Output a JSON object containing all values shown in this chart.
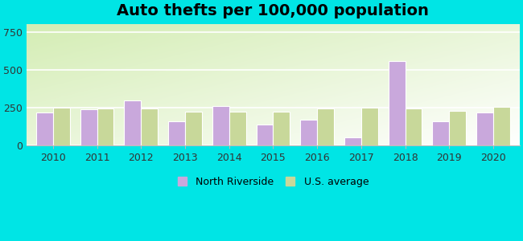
{
  "title": "Auto thefts per 100,000 population",
  "years": [
    2010,
    2011,
    2012,
    2013,
    2014,
    2015,
    2016,
    2017,
    2018,
    2019,
    2020
  ],
  "north_riverside": [
    220,
    240,
    300,
    160,
    260,
    140,
    170,
    55,
    560,
    160,
    220
  ],
  "us_average": [
    250,
    245,
    245,
    225,
    225,
    225,
    245,
    250,
    245,
    230,
    255
  ],
  "north_riverside_color": "#c9a8dc",
  "us_average_color": "#c8d89a",
  "bar_width": 0.38,
  "ylim": [
    0,
    800
  ],
  "yticks": [
    0,
    250,
    500,
    750
  ],
  "outer_bg": "#00e5e5",
  "title_fontsize": 14,
  "legend_labels": [
    "North Riverside",
    "U.S. average"
  ],
  "fig_width": 6.5,
  "fig_height": 3.0,
  "fig_dpi": 100
}
